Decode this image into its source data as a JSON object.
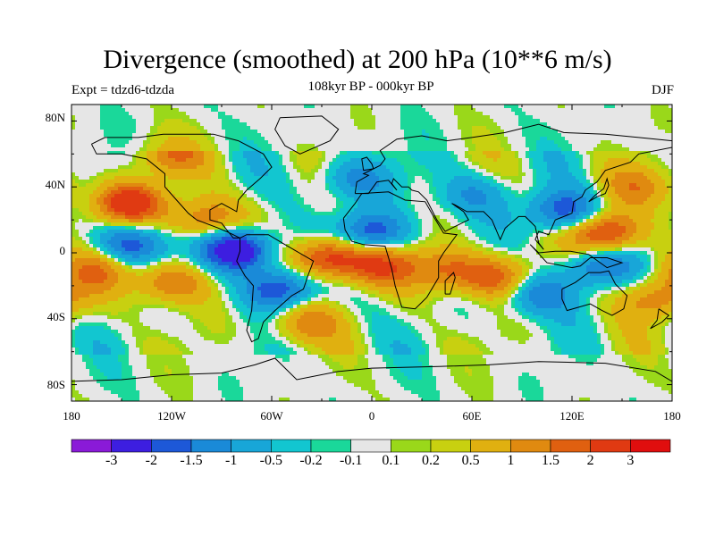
{
  "title": "Divergence (smoothed) at 200 hPa (10**6 m/s)",
  "subtitle": "108kyr BP - 000kyr BP",
  "experiment": "Expt = tdzd6-tdzda",
  "season": "DJF",
  "lat_labels": [
    "80N",
    "40N",
    "0",
    "40S",
    "80S"
  ],
  "lon_labels": [
    "180",
    "120W",
    "60W",
    "0",
    "60E",
    "120E",
    "180"
  ],
  "colorbar": {
    "labels": [
      "-3",
      "-2",
      "-1.5",
      "-1",
      "-0.5",
      "-0.2",
      "-0.1",
      "0.1",
      "0.2",
      "0.5",
      "1",
      "1.5",
      "2",
      "3"
    ],
    "colors": [
      "#8a1ad8",
      "#3d1ee0",
      "#1d58d8",
      "#1a8ad8",
      "#18a6d8",
      "#12c6d0",
      "#1ad89a",
      "#e6e6e6",
      "#9ad81a",
      "#c8d010",
      "#e0b010",
      "#e08a10",
      "#e06010",
      "#e03a12",
      "#e00e0e"
    ]
  },
  "chart_data": {
    "type": "heatmap",
    "title": "Divergence (smoothed) at 200 hPa (10**6 m/s)",
    "units": "10**6 m/s",
    "x_range": [
      -180,
      180
    ],
    "y_range": [
      -90,
      90
    ],
    "anomalies": [
      {
        "lon": -145,
        "lat": 30,
        "value": 2.6
      },
      {
        "lon": -145,
        "lat": 5,
        "value": -2.0
      },
      {
        "lon": -120,
        "lat": -18,
        "value": 1.6
      },
      {
        "lon": -165,
        "lat": -10,
        "value": 1.4
      },
      {
        "lon": -80,
        "lat": 2,
        "value": -3.0
      },
      {
        "lon": -55,
        "lat": -22,
        "value": -2.0
      },
      {
        "lon": -25,
        "lat": -3,
        "value": 2.6
      },
      {
        "lon": 5,
        "lat": -8,
        "value": 1.8
      },
      {
        "lon": 0,
        "lat": 12,
        "value": -2.0
      },
      {
        "lon": -40,
        "lat": -42,
        "value": 1.3
      },
      {
        "lon": 45,
        "lat": -10,
        "value": 1.5
      },
      {
        "lon": 75,
        "lat": -15,
        "value": 1.8
      },
      {
        "lon": 140,
        "lat": 12,
        "value": 2.6
      },
      {
        "lon": 115,
        "lat": 25,
        "value": -2.0
      },
      {
        "lon": 135,
        "lat": -8,
        "value": -1.6
      },
      {
        "lon": 100,
        "lat": -25,
        "value": -1.5
      },
      {
        "lon": 170,
        "lat": -28,
        "value": 1.4
      },
      {
        "lon": -120,
        "lat": 60,
        "value": 1.3
      },
      {
        "lon": -10,
        "lat": 45,
        "value": -1.2
      },
      {
        "lon": 60,
        "lat": 35,
        "value": -1.0
      },
      {
        "lon": 160,
        "lat": 40,
        "value": 1.2
      },
      {
        "lon": -100,
        "lat": 20,
        "value": 1.6
      }
    ]
  }
}
